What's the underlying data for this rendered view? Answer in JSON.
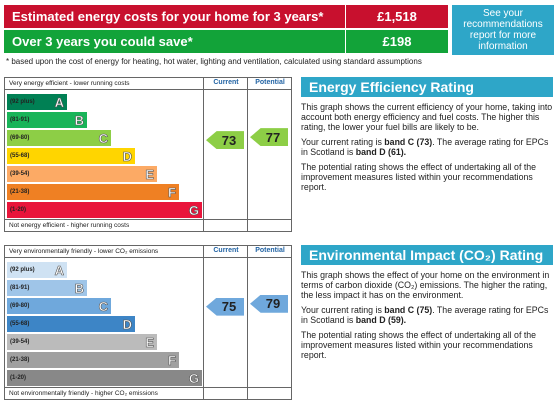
{
  "header": {
    "costs_label": "Estimated energy costs for your home for 3 years*",
    "costs_value": "£1,518",
    "save_label": "Over 3 years you could save*",
    "save_value": "£198",
    "recommendations": "See your recommendations report for more information",
    "note": "* based upon the cost of energy for heating, hot water, lighting and ventilation, calculated using standard assumptions"
  },
  "energy": {
    "top_text": "Very energy efficient - lower running costs",
    "bottom_text": "Not energy efficient - higher running costs",
    "current_label": "Current",
    "potential_label": "Potential",
    "current": "73",
    "potential": "77",
    "bands": [
      {
        "range": "(92 plus)",
        "letter": "A",
        "color": "#008054"
      },
      {
        "range": "(81-91)",
        "letter": "B",
        "color": "#19b459"
      },
      {
        "range": "(69-80)",
        "letter": "C",
        "color": "#8dce46"
      },
      {
        "range": "(55-68)",
        "letter": "D",
        "color": "#ffd500"
      },
      {
        "range": "(39-54)",
        "letter": "E",
        "color": "#fcaa65"
      },
      {
        "range": "(21-38)",
        "letter": "F",
        "color": "#ef8023"
      },
      {
        "range": "(1-20)",
        "letter": "G",
        "color": "#e9153b"
      }
    ],
    "arrow_color": "#8dce46"
  },
  "environment": {
    "top_text": "Very environmentally friendly - lower CO₂ emissions",
    "bottom_text": "Not environmentally friendly - higher CO₂ emissions",
    "current_label": "Current",
    "potential_label": "Potential",
    "current": "75",
    "potential": "79",
    "bands": [
      {
        "range": "(92 plus)",
        "letter": "A",
        "color": "#cfe2f3"
      },
      {
        "range": "(81-91)",
        "letter": "B",
        "color": "#9fc5e8"
      },
      {
        "range": "(69-80)",
        "letter": "C",
        "color": "#6fa8dc"
      },
      {
        "range": "(55-68)",
        "letter": "D",
        "color": "#3d85c6"
      },
      {
        "range": "(39-54)",
        "letter": "E",
        "color": "#bbbbbb"
      },
      {
        "range": "(21-38)",
        "letter": "F",
        "color": "#a0a0a0"
      },
      {
        "range": "(1-20)",
        "letter": "G",
        "color": "#888888"
      }
    ],
    "arrow_color": "#6fa8dc"
  },
  "eer_panel": {
    "title": "Energy Efficiency Rating",
    "p1": "This graph shows the current efficiency of your home, taking into account both energy efficiency and fuel costs. The higher this rating, the lower your fuel bills are likely to be.",
    "p2_a": "Your current rating is ",
    "p2_b": "band C (73)",
    "p2_c": ". The average rating for EPCs in Scotland is ",
    "p2_d": "band D (61).",
    "p3": "The potential rating shows the effect of undertaking all of the improvement measures listed within your recommendations report."
  },
  "eir_panel": {
    "title": "Environmental Impact (CO₂) Rating",
    "p1": "This graph shows the effect of your home on the environment in terms of carbon dioxide (CO₂) emissions. The higher the rating, the less impact it has on the environment.",
    "p2_a": "Your current rating is ",
    "p2_b": "band C (75)",
    "p2_c": ". The average rating for EPCs in Scotland is ",
    "p2_d": "band D (59).",
    "p3": "The potential rating shows the effect of undertaking all of the improvement measures listed within your recommendations report."
  }
}
